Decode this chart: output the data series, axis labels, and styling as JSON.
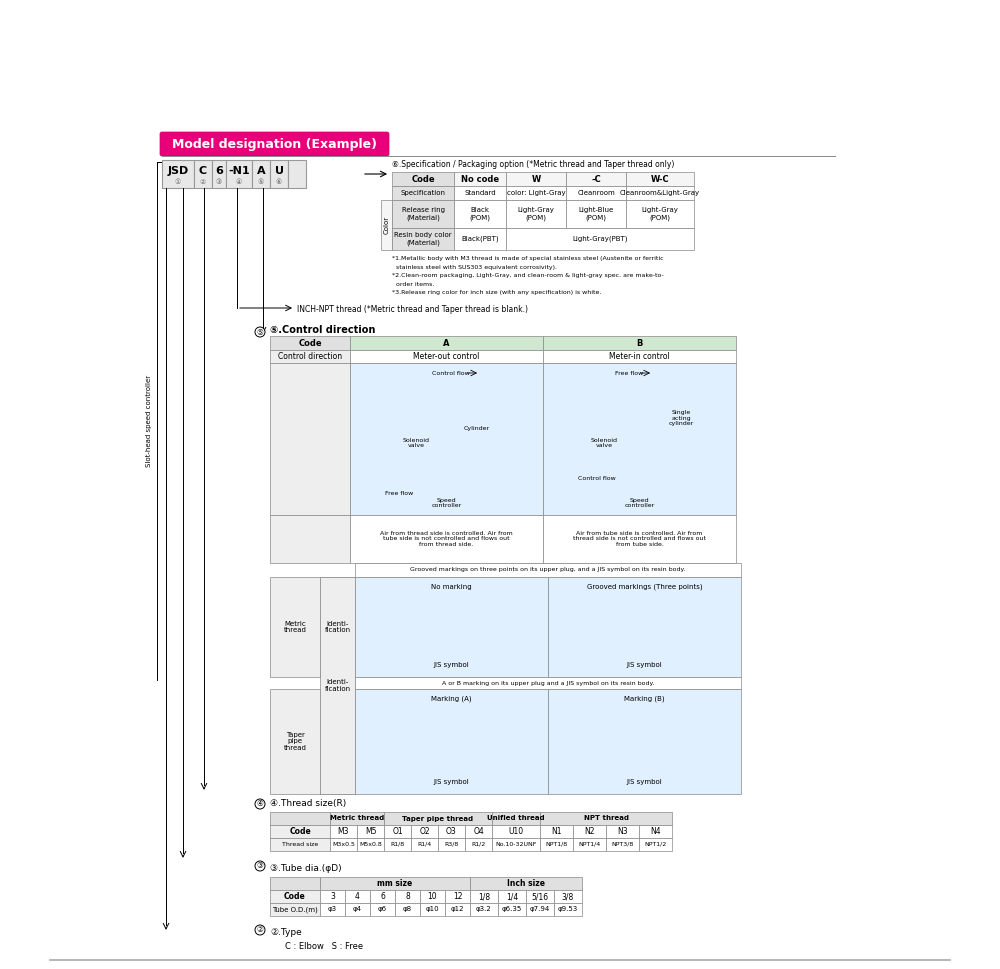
{
  "bg_color": "#ffffff",
  "title_text": "Model designation (Example)",
  "left_label": "Slot-head speed controller",
  "spec_table_title": "⑥.Specification / Packaging option (*Metric thread and Taper thread only)",
  "spec_codes": [
    "Code",
    "No code",
    "W",
    "-C",
    "W-C"
  ],
  "spec_row1": [
    "Specification",
    "Standard",
    "color: Light-Gray",
    "Cleanroom",
    "Cleanroom&Light-Gray"
  ],
  "spec_row2": [
    "Release ring\n(Material)",
    "Black\n(POM)",
    "Light-Gray\n(POM)",
    "Light-Blue\n(POM)",
    "Light-Gray\n(POM)"
  ],
  "spec_row3": [
    "Resin body color\n(Material)",
    "Black(PBT)",
    "Light-Gray(PBT)",
    "",
    ""
  ],
  "spec_notes": [
    "*1.Metallic body with M3 thread is made of special stainless steel (Austenite or ferritic",
    "  stainless steel with SUS303 equivalent corrosivity).",
    "*2.Clean-room packaging, Light-Gray, and clean-room & light-gray spec. are make-to-",
    "  order items.",
    "*3.Release ring color for inch size (with any specification) is white."
  ],
  "inch_npt_note": "INCH-NPT thread (*Metric thread and Taper thread is blank.)",
  "ctrl_dir_title": "⑤.Control direction",
  "ctrl_text_A": "Air from thread side is controlled. Air from\ntube side is not controlled and flows out\nfrom thread side.",
  "ctrl_text_B": "Air from tube side is controlled. Air from\nthread side is not controlled and flows out\nfrom tube side.",
  "ident_metric_note": "Grooved markings on three points on its upper plug, and a JIS symbol on its resin body.",
  "ident_metric_label": "Metric\nthread",
  "ident_taper_label": "Taper\npipe\nthread",
  "ident_label": "Identi-\nfication",
  "ident_metric_A": "No marking",
  "ident_metric_B": "Grooved markings (Three points)",
  "ident_metric_jis": "JIS symbol",
  "ident_taper_note": "A or B marking on its upper plug and a JIS symbol on its resin body.",
  "ident_taper_A": "Marking (A)",
  "ident_taper_B": "Marking (B)",
  "ident_taper_jis": "JIS symbol",
  "thread_title": "④.Thread size(R)",
  "thread_groups": [
    "Metric thread",
    "Taper pipe thread",
    "Unified thread",
    "NPT thread"
  ],
  "thread_group_spans": [
    2,
    4,
    1,
    4
  ],
  "thread_codes": [
    "Code",
    "M3",
    "M5",
    "O1",
    "O2",
    "O3",
    "O4",
    "U10",
    "N1",
    "N2",
    "N3",
    "N4"
  ],
  "thread_sizes": [
    "Thread size",
    "M3x0.5",
    "M5x0.8",
    "R1/8",
    "R1/4",
    "R3/8",
    "R1/2",
    "No.10-32UNF",
    "NPT1/8",
    "NPT1/4",
    "NPT3/8",
    "NPT1/2"
  ],
  "tube_title": "③.Tube dia.(φD)",
  "tube_mm_label": "mm size",
  "tube_inch_label": "Inch size",
  "tube_codes": [
    "Code",
    "3",
    "4",
    "6",
    "8",
    "10",
    "12",
    "1/8",
    "1/4",
    "5/16",
    "3/8"
  ],
  "tube_sizes": [
    "Tube O.D.(m)",
    "φ3",
    "φ4",
    "φ6",
    "φ8",
    "φ10",
    "φ12",
    "φ3.2",
    "φ6.35",
    "φ7.94",
    "φ9.53"
  ],
  "type_title": "②.Type",
  "type_desc": "C : Elbow   S : Free"
}
